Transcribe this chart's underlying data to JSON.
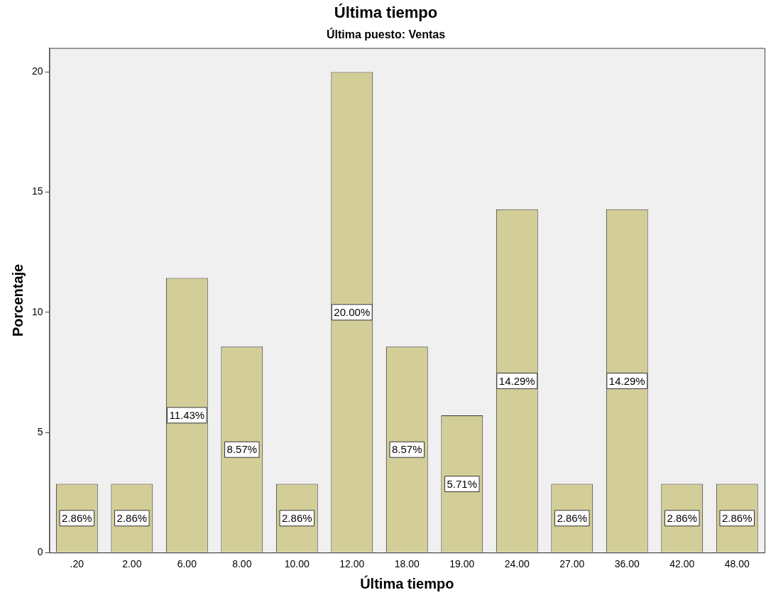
{
  "chart_data": {
    "type": "bar",
    "title": "Última tiempo",
    "subtitle": "Última puesto: Ventas",
    "xlabel": "Última tiempo",
    "ylabel": "Porcentaje",
    "categories": [
      ".20",
      "2.00",
      "6.00",
      "8.00",
      "10.00",
      "12.00",
      "18.00",
      "19.00",
      "24.00",
      "27.00",
      "36.00",
      "42.00",
      "48.00"
    ],
    "values": [
      2.86,
      2.86,
      11.43,
      8.57,
      2.86,
      20.0,
      8.57,
      5.71,
      14.29,
      2.86,
      14.29,
      2.86,
      2.86
    ],
    "value_labels": [
      "2.86%",
      "2.86%",
      "11.43%",
      "8.57%",
      "2.86%",
      "20.00%",
      "8.57%",
      "5.71%",
      "14.29%",
      "2.86%",
      "14.29%",
      "2.86%",
      "2.86%"
    ],
    "color": "#d3ce98",
    "ylim": [
      0,
      21
    ],
    "yticks": [
      0,
      5,
      10,
      15,
      20
    ],
    "grid": false,
    "legend": false
  }
}
